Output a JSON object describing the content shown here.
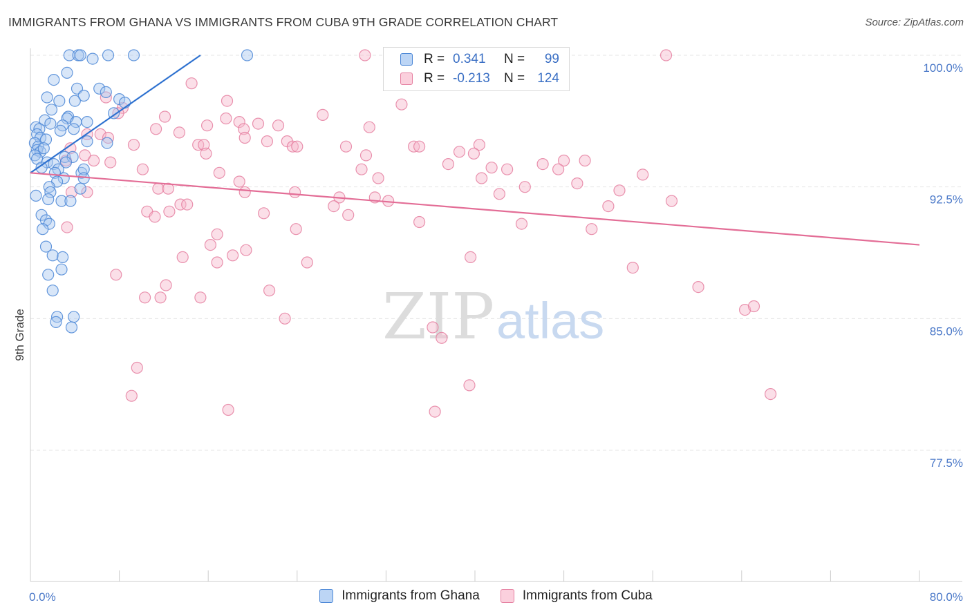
{
  "title": "IMMIGRANTS FROM GHANA VS IMMIGRANTS FROM CUBA 9TH GRADE CORRELATION CHART",
  "source": "Source: ZipAtlas.com",
  "watermark": {
    "zip": "ZIP",
    "atlas": "atlas"
  },
  "colors": {
    "ghana_fill": "#a9c8f0",
    "ghana_stroke": "#4a86d6",
    "ghana_line": "#2f72d0",
    "cuba_fill": "#f7b8cc",
    "cuba_stroke": "#e57fa0",
    "cuba_line": "#e36d96",
    "tick_text": "#4a78c8",
    "grid": "#e4e4e4"
  },
  "legend": {
    "rows": [
      {
        "r_label": "R =",
        "r_value": "0.341",
        "n_label": "N =",
        "n_value": "99"
      },
      {
        "r_label": "R =",
        "r_value": "-0.213",
        "n_label": "N =",
        "n_value": "124"
      }
    ]
  },
  "series_labels": [
    "Immigrants from Ghana",
    "Immigrants from Cuba"
  ],
  "chart_data": {
    "type": "scatter",
    "title": "IMMIGRANTS FROM GHANA VS IMMIGRANTS FROM CUBA 9TH GRADE CORRELATION CHART",
    "xlabel": "",
    "ylabel": "9th Grade",
    "xlim": [
      0,
      80
    ],
    "ylim": [
      71,
      101
    ],
    "x_tick_labels": [
      "0.0%",
      "80.0%"
    ],
    "y_ticks": [
      77.5,
      85.0,
      92.5,
      100.0
    ],
    "y_tick_labels": [
      "77.5%",
      "85.0%",
      "92.5%",
      "100.0%"
    ],
    "grid": true,
    "legend_position": "top-center",
    "series": [
      {
        "name": "Immigrants from Ghana",
        "R": 0.341,
        "N": 99,
        "trend": {
          "x": [
            0.0,
            15.3
          ],
          "y": [
            93.3,
            100.0
          ]
        },
        "points": [
          [
            3.5,
            100
          ],
          [
            4.3,
            100
          ],
          [
            4.5,
            100
          ],
          [
            7.0,
            100
          ],
          [
            9.3,
            100
          ],
          [
            19.5,
            100
          ],
          [
            5.6,
            99.8
          ],
          [
            3.3,
            99.0
          ],
          [
            2.1,
            98.6
          ],
          [
            4.2,
            98.1
          ],
          [
            6.2,
            98.1
          ],
          [
            1.5,
            97.6
          ],
          [
            4.8,
            97.7
          ],
          [
            6.8,
            97.9
          ],
          [
            8.0,
            97.5
          ],
          [
            2.6,
            97.4
          ],
          [
            4.0,
            97.4
          ],
          [
            8.5,
            97.3
          ],
          [
            1.9,
            96.9
          ],
          [
            3.4,
            96.5
          ],
          [
            7.5,
            96.7
          ],
          [
            1.3,
            96.3
          ],
          [
            1.8,
            96.1
          ],
          [
            3.3,
            96.4
          ],
          [
            4.1,
            96.2
          ],
          [
            5.1,
            96.2
          ],
          [
            2.9,
            96.0
          ],
          [
            0.5,
            95.9
          ],
          [
            0.8,
            95.8
          ],
          [
            2.7,
            95.7
          ],
          [
            3.9,
            95.8
          ],
          [
            0.6,
            95.5
          ],
          [
            0.9,
            95.3
          ],
          [
            1.4,
            95.2
          ],
          [
            5.1,
            95.1
          ],
          [
            6.9,
            95.0
          ],
          [
            0.4,
            95.0
          ],
          [
            0.7,
            94.8
          ],
          [
            0.6,
            94.6
          ],
          [
            0.9,
            94.5
          ],
          [
            1.2,
            94.7
          ],
          [
            0.4,
            94.3
          ],
          [
            0.6,
            94.1
          ],
          [
            3.1,
            94.2
          ],
          [
            3.8,
            94.2
          ],
          [
            1.5,
            93.9
          ],
          [
            2.1,
            93.8
          ],
          [
            3.2,
            93.9
          ],
          [
            1.0,
            93.6
          ],
          [
            2.5,
            93.5
          ],
          [
            4.6,
            93.3
          ],
          [
            4.8,
            93.5
          ],
          [
            2.2,
            93.3
          ],
          [
            3.0,
            93.0
          ],
          [
            4.8,
            93.0
          ],
          [
            2.4,
            92.8
          ],
          [
            1.7,
            92.5
          ],
          [
            1.8,
            92.2
          ],
          [
            4.5,
            92.4
          ],
          [
            0.5,
            92.0
          ],
          [
            1.6,
            91.8
          ],
          [
            2.8,
            91.7
          ],
          [
            3.6,
            91.7
          ],
          [
            1.0,
            90.9
          ],
          [
            1.4,
            90.6
          ],
          [
            1.7,
            90.4
          ],
          [
            1.1,
            90.1
          ],
          [
            1.4,
            89.1
          ],
          [
            2.0,
            88.6
          ],
          [
            2.9,
            88.5
          ],
          [
            2.8,
            87.8
          ],
          [
            1.6,
            87.5
          ],
          [
            2.0,
            86.6
          ],
          [
            2.4,
            85.1
          ],
          [
            3.9,
            85.1
          ],
          [
            2.3,
            84.8
          ],
          [
            3.7,
            84.5
          ]
        ]
      },
      {
        "name": "Immigrants from Cuba",
        "R": -0.213,
        "N": 124,
        "trend": {
          "x": [
            0.0,
            80.0
          ],
          "y": [
            93.3,
            89.2
          ]
        },
        "points": [
          [
            30.1,
            100
          ],
          [
            57.2,
            100
          ],
          [
            14.5,
            98.4
          ],
          [
            33.4,
            97.2
          ],
          [
            17.7,
            97.4
          ],
          [
            6.8,
            97.6
          ],
          [
            8.3,
            97.0
          ],
          [
            7.9,
            96.7
          ],
          [
            12.1,
            96.5
          ],
          [
            17.6,
            96.4
          ],
          [
            18.8,
            96.2
          ],
          [
            20.5,
            96.1
          ],
          [
            26.3,
            96.6
          ],
          [
            15.9,
            96.0
          ],
          [
            19.2,
            95.8
          ],
          [
            30.5,
            95.9
          ],
          [
            22.3,
            96.0
          ],
          [
            11.3,
            95.8
          ],
          [
            13.4,
            95.6
          ],
          [
            5.1,
            95.5
          ],
          [
            6.3,
            95.5
          ],
          [
            7.0,
            95.3
          ],
          [
            19.3,
            95.3
          ],
          [
            21.3,
            95.1
          ],
          [
            23.1,
            95.1
          ],
          [
            9.3,
            94.9
          ],
          [
            15.1,
            94.9
          ],
          [
            15.6,
            94.9
          ],
          [
            23.6,
            94.8
          ],
          [
            24.0,
            94.8
          ],
          [
            28.4,
            94.8
          ],
          [
            34.5,
            94.8
          ],
          [
            35.0,
            94.8
          ],
          [
            38.6,
            94.5
          ],
          [
            40.4,
            94.9
          ],
          [
            3.6,
            94.7
          ],
          [
            39.9,
            94.4
          ],
          [
            15.8,
            94.4
          ],
          [
            4.9,
            94.3
          ],
          [
            30.2,
            94.3
          ],
          [
            3.2,
            94.0
          ],
          [
            5.7,
            94.0
          ],
          [
            7.2,
            93.9
          ],
          [
            48.0,
            94.0
          ],
          [
            49.9,
            94.0
          ],
          [
            46.1,
            93.8
          ],
          [
            37.6,
            93.8
          ],
          [
            41.5,
            93.6
          ],
          [
            10.1,
            93.5
          ],
          [
            17.0,
            93.3
          ],
          [
            29.8,
            93.5
          ],
          [
            42.9,
            93.5
          ],
          [
            47.5,
            93.5
          ],
          [
            55.1,
            93.2
          ],
          [
            18.8,
            92.8
          ],
          [
            31.3,
            93.0
          ],
          [
            40.6,
            93.0
          ],
          [
            49.2,
            92.7
          ],
          [
            44.5,
            92.5
          ],
          [
            11.5,
            92.4
          ],
          [
            12.4,
            92.4
          ],
          [
            23.8,
            92.2
          ],
          [
            19.3,
            92.2
          ],
          [
            3.7,
            92.2
          ],
          [
            5.1,
            92.2
          ],
          [
            53.0,
            92.3
          ],
          [
            27.8,
            91.9
          ],
          [
            31.0,
            91.9
          ],
          [
            42.2,
            92.1
          ],
          [
            32.2,
            91.7
          ],
          [
            57.7,
            91.7
          ],
          [
            13.5,
            91.5
          ],
          [
            14.1,
            91.5
          ],
          [
            52.0,
            91.4
          ],
          [
            27.3,
            91.4
          ],
          [
            10.5,
            91.1
          ],
          [
            12.5,
            91.1
          ],
          [
            21.0,
            91.0
          ],
          [
            11.2,
            90.8
          ],
          [
            28.6,
            90.9
          ],
          [
            35.0,
            90.5
          ],
          [
            44.2,
            90.4
          ],
          [
            3.3,
            90.2
          ],
          [
            23.9,
            90.1
          ],
          [
            50.5,
            90.1
          ],
          [
            16.8,
            89.8
          ],
          [
            16.2,
            89.2
          ],
          [
            19.4,
            88.9
          ],
          [
            18.2,
            88.6
          ],
          [
            13.7,
            88.5
          ],
          [
            39.6,
            88.5
          ],
          [
            24.9,
            88.2
          ],
          [
            16.8,
            88.2
          ],
          [
            54.2,
            87.9
          ],
          [
            7.7,
            87.5
          ],
          [
            12.2,
            86.9
          ],
          [
            21.5,
            86.6
          ],
          [
            60.1,
            86.8
          ],
          [
            10.3,
            86.2
          ],
          [
            11.7,
            86.2
          ],
          [
            15.3,
            86.2
          ],
          [
            64.3,
            85.5
          ],
          [
            65.1,
            85.7
          ],
          [
            22.9,
            85.0
          ],
          [
            36.2,
            84.5
          ],
          [
            37.0,
            83.9
          ],
          [
            9.6,
            82.2
          ],
          [
            39.5,
            81.2
          ],
          [
            9.1,
            80.6
          ],
          [
            66.6,
            80.7
          ],
          [
            17.8,
            79.8
          ],
          [
            36.4,
            79.7
          ]
        ]
      }
    ]
  }
}
